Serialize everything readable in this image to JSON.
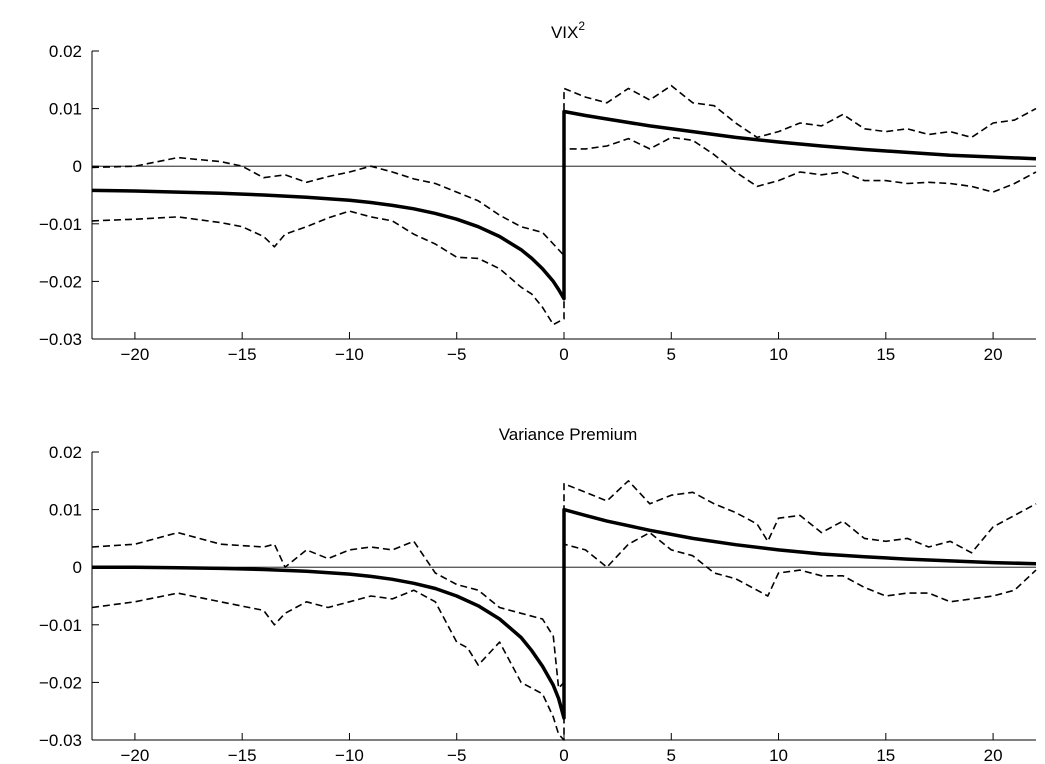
{
  "chart_data": [
    {
      "type": "line",
      "title": "VIX",
      "title_superscript": "2",
      "xlabel": "",
      "ylabel": "",
      "xlim": [
        -22,
        22
      ],
      "ylim": [
        -0.03,
        0.02
      ],
      "xticks": [
        -20,
        -15,
        -10,
        -5,
        0,
        5,
        10,
        15,
        20
      ],
      "xtick_labels": [
        "−20",
        "−15",
        "−10",
        "−5",
        "0",
        "5",
        "10",
        "15",
        "20"
      ],
      "yticks": [
        -0.03,
        -0.02,
        -0.01,
        0,
        0.01,
        0.02
      ],
      "ytick_labels": [
        "−0.03",
        "−0.02",
        "−0.01",
        "0",
        "0.01",
        "0.02"
      ],
      "grid": false,
      "zero_line": true,
      "series": [
        {
          "role": "estimate",
          "style": "solid",
          "x": [
            -22,
            -20,
            -18,
            -16,
            -14,
            -12,
            -10,
            -9,
            -8,
            -7,
            -6,
            -5,
            -4,
            -3,
            -2,
            -1.5,
            -1,
            -0.5,
            -0.25,
            0,
            0,
            1,
            2,
            4,
            6,
            8,
            10,
            12,
            14,
            16,
            18,
            20,
            22
          ],
          "values": [
            -0.0042,
            -0.0043,
            -0.0045,
            -0.0047,
            -0.005,
            -0.0054,
            -0.0059,
            -0.0063,
            -0.0068,
            -0.0074,
            -0.0082,
            -0.0092,
            -0.0105,
            -0.0122,
            -0.0145,
            -0.016,
            -0.0178,
            -0.02,
            -0.0214,
            -0.023,
            0.0095,
            0.0088,
            0.0082,
            0.007,
            0.006,
            0.005,
            0.0042,
            0.0035,
            0.0029,
            0.0024,
            0.0019,
            0.0016,
            0.0013
          ]
        },
        {
          "role": "upper-band",
          "style": "dashed",
          "x": [
            -22,
            -20,
            -18,
            -16,
            -15,
            -14,
            -13,
            -12,
            -11,
            -10,
            -9,
            -8,
            -7,
            -6,
            -5,
            -4,
            -3,
            -2,
            -1,
            -0.5,
            0,
            0,
            1,
            2,
            3,
            4,
            5,
            6,
            7,
            8,
            9,
            10,
            11,
            12,
            13,
            14,
            15,
            16,
            17,
            18,
            19,
            20,
            21,
            22
          ],
          "values": [
            -0.0002,
            0.0,
            0.0015,
            0.0008,
            0.0,
            -0.002,
            -0.0015,
            -0.0028,
            -0.0018,
            -0.001,
            0.0,
            -0.001,
            -0.0022,
            -0.003,
            -0.0045,
            -0.006,
            -0.0085,
            -0.0105,
            -0.0115,
            -0.0135,
            -0.0155,
            0.0135,
            0.012,
            0.011,
            0.0135,
            0.0115,
            0.014,
            0.011,
            0.0105,
            0.0075,
            0.005,
            0.006,
            0.0075,
            0.007,
            0.009,
            0.0065,
            0.006,
            0.0065,
            0.0055,
            0.006,
            0.005,
            0.0075,
            0.008,
            0.01
          ]
        },
        {
          "role": "lower-band",
          "style": "dashed",
          "x": [
            -22,
            -20,
            -18,
            -16,
            -15,
            -14,
            -13.5,
            -13,
            -12,
            -11,
            -10,
            -9,
            -8,
            -7,
            -6,
            -5,
            -4,
            -3,
            -2,
            -1.5,
            -1,
            -0.5,
            0,
            0,
            1,
            2,
            3,
            4,
            5,
            6,
            7,
            8,
            9,
            10,
            11,
            12,
            13,
            14,
            15,
            16,
            17,
            18,
            19,
            20,
            21,
            22
          ],
          "values": [
            -0.0095,
            -0.0092,
            -0.0088,
            -0.0098,
            -0.0105,
            -0.0122,
            -0.014,
            -0.0118,
            -0.0105,
            -0.009,
            -0.0078,
            -0.0088,
            -0.0095,
            -0.0118,
            -0.0135,
            -0.0158,
            -0.016,
            -0.0178,
            -0.021,
            -0.0222,
            -0.0245,
            -0.0275,
            -0.0265,
            0.003,
            0.003,
            0.0035,
            0.0048,
            0.003,
            0.005,
            0.0045,
            0.002,
            -0.001,
            -0.0035,
            -0.0025,
            -0.001,
            -0.0015,
            -0.001,
            -0.0025,
            -0.0025,
            -0.003,
            -0.0028,
            -0.003,
            -0.0035,
            -0.0045,
            -0.003,
            -0.001
          ]
        }
      ]
    },
    {
      "type": "line",
      "title": "Variance Premium",
      "title_superscript": "",
      "xlabel": "",
      "ylabel": "",
      "xlim": [
        -22,
        22
      ],
      "ylim": [
        -0.03,
        0.02
      ],
      "xticks": [
        -20,
        -15,
        -10,
        -5,
        0,
        5,
        10,
        15,
        20
      ],
      "xtick_labels": [
        "−20",
        "−15",
        "−10",
        "−5",
        "0",
        "5",
        "10",
        "15",
        "20"
      ],
      "yticks": [
        -0.03,
        -0.02,
        -0.01,
        0,
        0.01,
        0.02
      ],
      "ytick_labels": [
        "−0.03",
        "−0.02",
        "−0.01",
        "0",
        "0.01",
        "0.02"
      ],
      "grid": false,
      "zero_line": true,
      "series": [
        {
          "role": "estimate",
          "style": "solid",
          "x": [
            -22,
            -20,
            -18,
            -16,
            -14,
            -12,
            -10,
            -9,
            -8,
            -7,
            -6,
            -5,
            -4,
            -3,
            -2,
            -1.5,
            -1,
            -0.5,
            -0.25,
            0,
            0,
            1,
            2,
            4,
            6,
            8,
            10,
            12,
            14,
            16,
            18,
            20,
            22
          ],
          "values": [
            0.0,
            0.0,
            -0.0001,
            -0.0002,
            -0.0004,
            -0.0007,
            -0.0012,
            -0.0016,
            -0.0021,
            -0.0028,
            -0.0037,
            -0.005,
            -0.0067,
            -0.009,
            -0.0122,
            -0.0145,
            -0.0172,
            -0.0205,
            -0.0228,
            -0.0262,
            0.01,
            0.009,
            0.008,
            0.0064,
            0.005,
            0.0039,
            0.003,
            0.0023,
            0.0018,
            0.0014,
            0.0011,
            0.0008,
            0.0006
          ]
        },
        {
          "role": "upper-band",
          "style": "dashed",
          "x": [
            -22,
            -20,
            -18,
            -16,
            -14,
            -13.5,
            -13,
            -12,
            -11,
            -10,
            -9,
            -8,
            -7,
            -6,
            -5,
            -4,
            -3,
            -2,
            -1,
            -0.5,
            -0.25,
            0,
            0,
            1,
            2,
            3,
            4,
            5,
            6,
            7,
            8,
            9,
            9.5,
            10,
            11,
            12,
            13,
            14,
            15,
            16,
            17,
            18,
            19,
            20,
            21,
            22
          ],
          "values": [
            0.0035,
            0.004,
            0.006,
            0.004,
            0.0035,
            0.004,
            0.0,
            0.003,
            0.0015,
            0.003,
            0.0035,
            0.003,
            0.0045,
            -0.001,
            -0.003,
            -0.004,
            -0.007,
            -0.008,
            -0.009,
            -0.012,
            -0.021,
            -0.02,
            0.0145,
            0.013,
            0.0115,
            0.015,
            0.011,
            0.0125,
            0.013,
            0.011,
            0.0095,
            0.0075,
            0.0045,
            0.0085,
            0.009,
            0.006,
            0.008,
            0.005,
            0.0045,
            0.005,
            0.0035,
            0.0045,
            0.0025,
            0.007,
            0.009,
            0.011
          ]
        },
        {
          "role": "lower-band",
          "style": "dashed",
          "x": [
            -22,
            -20,
            -18,
            -16,
            -14,
            -13.5,
            -13,
            -12,
            -11,
            -10,
            -9,
            -8,
            -7,
            -6,
            -5,
            -4.5,
            -4,
            -3,
            -2,
            -1,
            -0.5,
            -0.25,
            0,
            0,
            1,
            2,
            3,
            4,
            5,
            6,
            7,
            8,
            9,
            9.5,
            10,
            11,
            12,
            13,
            14,
            15,
            16,
            17,
            18,
            19,
            20,
            21,
            22
          ],
          "values": [
            -0.007,
            -0.006,
            -0.0045,
            -0.006,
            -0.0075,
            -0.01,
            -0.008,
            -0.006,
            -0.007,
            -0.006,
            -0.005,
            -0.0055,
            -0.004,
            -0.006,
            -0.013,
            -0.014,
            -0.017,
            -0.013,
            -0.02,
            -0.022,
            -0.026,
            -0.029,
            -0.03,
            0.004,
            0.003,
            0.0,
            0.004,
            0.006,
            0.003,
            0.002,
            -0.001,
            -0.002,
            -0.004,
            -0.005,
            -0.001,
            -0.0005,
            -0.0015,
            -0.0015,
            -0.0035,
            -0.005,
            -0.0045,
            -0.0045,
            -0.006,
            -0.0055,
            -0.005,
            -0.004,
            -0.0005
          ]
        }
      ]
    }
  ]
}
